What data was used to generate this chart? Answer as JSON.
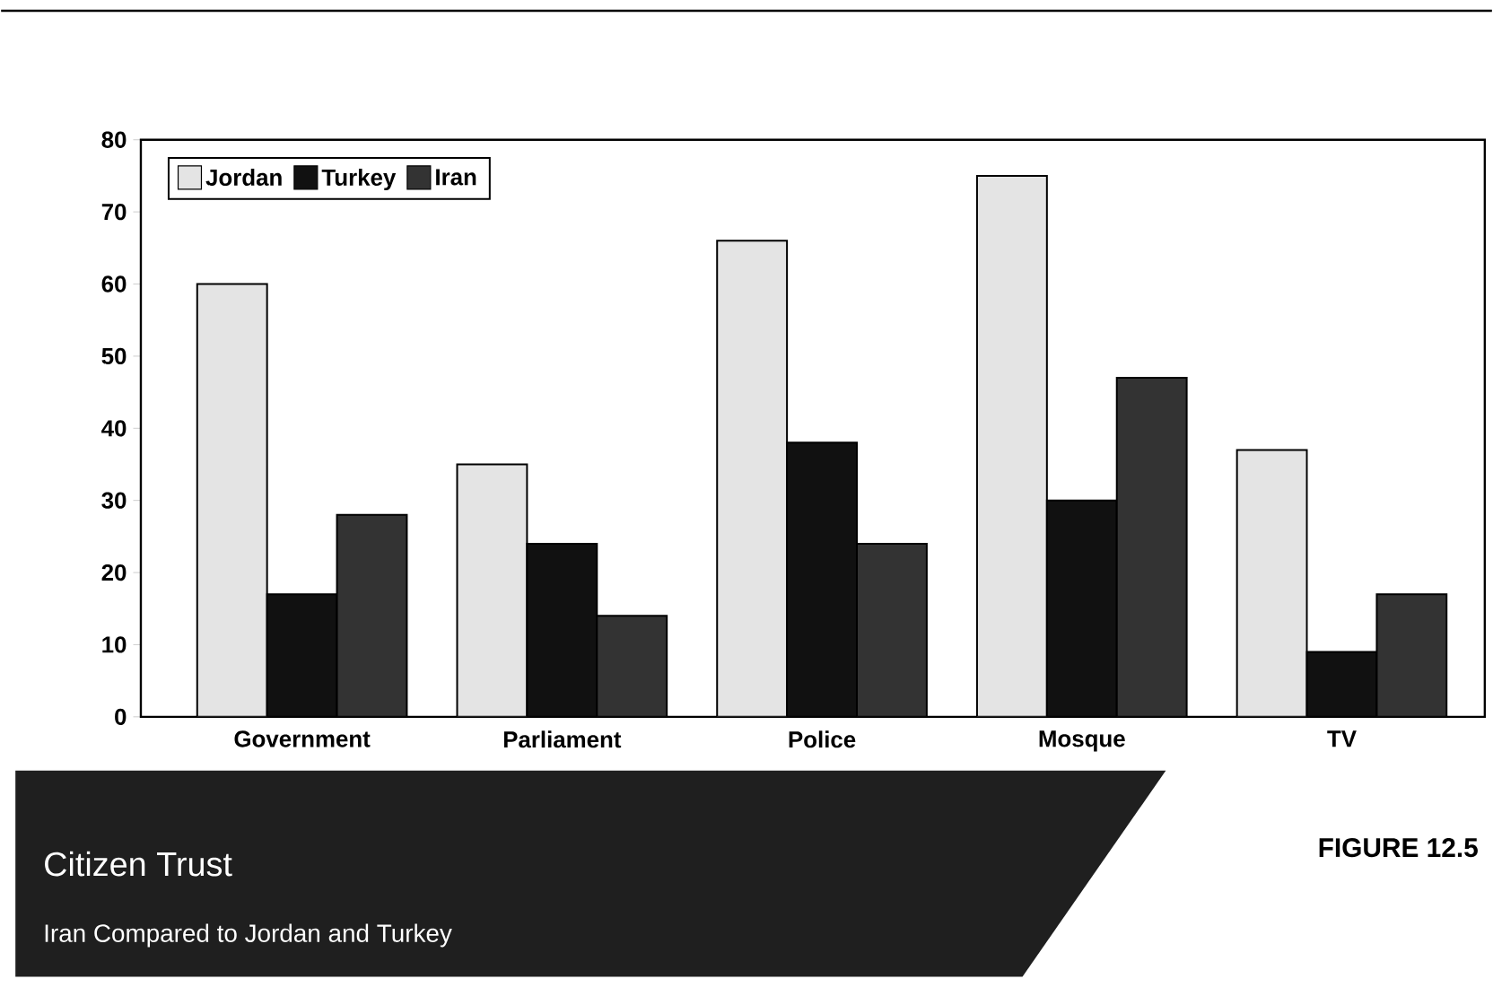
{
  "chart_data": {
    "type": "bar",
    "title": "Citizen Trust",
    "subtitle": "Iran Compared to Jordan and Turkey",
    "categories": [
      "Government",
      "Parliament",
      "Police",
      "Mosque",
      "TV"
    ],
    "series": [
      {
        "name": "Jordan",
        "color": "#e4e4e4",
        "values": [
          60,
          35,
          66,
          75,
          37
        ]
      },
      {
        "name": "Turkey",
        "color": "#111111",
        "values": [
          17,
          24,
          38,
          30,
          9
        ]
      },
      {
        "name": "Iran",
        "color": "#333333",
        "values": [
          28,
          14,
          24,
          47,
          17
        ]
      }
    ],
    "ylim": [
      0,
      80
    ],
    "yticks": [
      0,
      10,
      20,
      30,
      40,
      50,
      60,
      70,
      80
    ],
    "legend": "top left",
    "annotations": [
      "FIGURE 12.5"
    ]
  }
}
